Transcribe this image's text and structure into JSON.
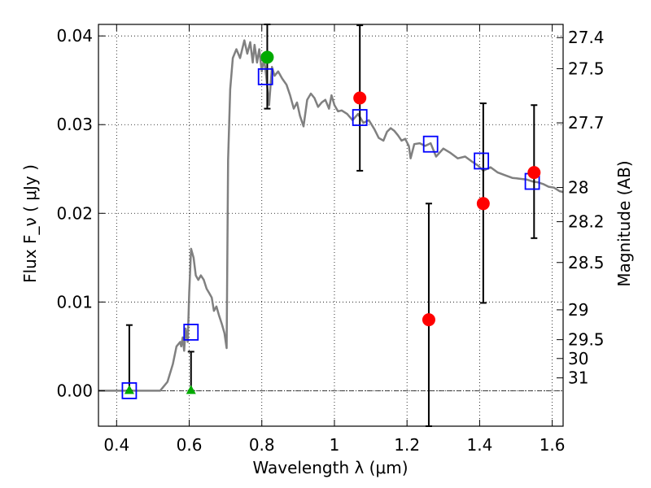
{
  "chart_data": {
    "type": "scatter",
    "xlabel": "Wavelength λ (μm)",
    "ylabel": "Flux F_ν ( μJy )",
    "y2label": "Magnitude (AB)",
    "xlim": [
      0.35,
      1.63
    ],
    "ylim": [
      -0.004,
      0.0413
    ],
    "grid": true,
    "x_ticks": [
      0.4,
      0.6,
      0.8,
      1.0,
      1.2,
      1.4,
      1.6
    ],
    "x_tick_labels": [
      "0.4",
      "0.6",
      "0.8",
      "1",
      "1.2",
      "1.4",
      "1.6"
    ],
    "y_ticks": [
      0.0,
      0.01,
      0.02,
      0.03,
      0.04
    ],
    "y_tick_labels": [
      "0.00",
      "0.01",
      "0.02",
      "0.03",
      "0.04"
    ],
    "mag_ticks": [
      "27.4",
      "27.5",
      "27.7",
      "28",
      "28.2",
      "28.5",
      "29",
      "29.5",
      "30",
      "31"
    ],
    "zero_line": true,
    "colors": {
      "model": "#808080",
      "red_points": "#ff0000",
      "green_points": "#00aa00",
      "model_boxes": "#0000ff",
      "errorbars": "#000000"
    },
    "series": [
      {
        "kind": "line",
        "x": [
          0.35,
          0.52,
          0.54,
          0.555,
          0.565,
          0.575,
          0.578,
          0.582,
          0.586,
          0.59,
          0.596,
          0.6,
          0.605,
          0.612,
          0.618,
          0.625,
          0.632,
          0.64,
          0.648,
          0.655,
          0.662,
          0.668,
          0.675,
          0.682,
          0.69,
          0.697,
          0.703,
          0.707,
          0.713,
          0.72,
          0.73,
          0.74,
          0.752,
          0.76,
          0.768,
          0.775,
          0.78,
          0.787,
          0.793,
          0.8,
          0.806,
          0.812,
          0.82,
          0.828,
          0.835,
          0.845,
          0.856,
          0.868,
          0.878,
          0.888,
          0.897,
          0.905,
          0.915,
          0.925,
          0.935,
          0.945,
          0.955,
          0.965,
          0.975,
          0.985,
          0.992,
          1.0,
          1.01,
          1.02,
          1.035,
          1.05,
          1.065,
          1.08,
          1.095,
          1.11,
          1.122,
          1.135,
          1.145,
          1.155,
          1.165,
          1.175,
          1.185,
          1.195,
          1.205,
          1.21,
          1.22,
          1.235,
          1.25,
          1.265,
          1.28,
          1.3,
          1.32,
          1.34,
          1.36,
          1.38,
          1.395,
          1.41,
          1.43,
          1.45,
          1.47,
          1.49,
          1.51,
          1.53,
          1.545,
          1.56,
          1.575,
          1.59,
          1.605,
          1.62,
          1.63
        ],
        "y": [
          0.0,
          0.0,
          0.001,
          0.003,
          0.005,
          0.0055,
          0.005,
          0.006,
          0.0045,
          0.007,
          0.0055,
          0.011,
          0.016,
          0.015,
          0.013,
          0.0125,
          0.013,
          0.0125,
          0.0115,
          0.011,
          0.0105,
          0.009,
          0.0095,
          0.0085,
          0.0075,
          0.0065,
          0.0048,
          0.026,
          0.034,
          0.0375,
          0.0385,
          0.0375,
          0.0395,
          0.038,
          0.0393,
          0.037,
          0.039,
          0.037,
          0.0385,
          0.036,
          0.0375,
          0.0355,
          0.0322,
          0.0365,
          0.0355,
          0.036,
          0.0352,
          0.0345,
          0.0333,
          0.0318,
          0.0325,
          0.031,
          0.0298,
          0.0328,
          0.0335,
          0.033,
          0.032,
          0.0325,
          0.0328,
          0.0318,
          0.0333,
          0.0322,
          0.0315,
          0.0316,
          0.0312,
          0.0305,
          0.0312,
          0.0302,
          0.0305,
          0.0295,
          0.0285,
          0.0282,
          0.0292,
          0.0296,
          0.0293,
          0.0288,
          0.0282,
          0.0284,
          0.0276,
          0.0262,
          0.0278,
          0.0279,
          0.0276,
          0.0279,
          0.0264,
          0.0273,
          0.0268,
          0.0262,
          0.0264,
          0.0258,
          0.0254,
          0.0248,
          0.0252,
          0.0246,
          0.0243,
          0.024,
          0.0239,
          0.0238,
          0.0236,
          0.0235,
          0.0233,
          0.023,
          0.0229,
          0.0225,
          0.0224
        ]
      },
      {
        "kind": "open-square",
        "x": [
          0.435,
          0.605,
          0.81,
          1.07,
          1.265,
          1.405,
          1.545
        ],
        "y": [
          0.0,
          0.0066,
          0.0354,
          0.0308,
          0.0278,
          0.0259,
          0.0236
        ]
      },
      {
        "kind": "red-circle",
        "x": [
          1.07,
          1.26,
          1.41,
          1.55
        ],
        "y": [
          0.033,
          0.008,
          0.0211,
          0.0246
        ],
        "yerr_low": [
          0.0248,
          -0.004,
          0.0099,
          0.0172
        ],
        "yerr_high": [
          0.0412,
          0.0211,
          0.0324,
          0.0322
        ]
      },
      {
        "kind": "green-circle",
        "x": [
          0.815
        ],
        "y": [
          0.0376
        ],
        "yerr_low": [
          0.0318
        ],
        "yerr_high": [
          0.0413
        ]
      },
      {
        "kind": "green-triangle",
        "x": [
          0.435,
          0.605
        ],
        "y": [
          0.0,
          0.0
        ],
        "yerr_low": [
          0.0,
          0.0
        ],
        "yerr_high": [
          0.0074,
          0.0044
        ]
      }
    ]
  }
}
